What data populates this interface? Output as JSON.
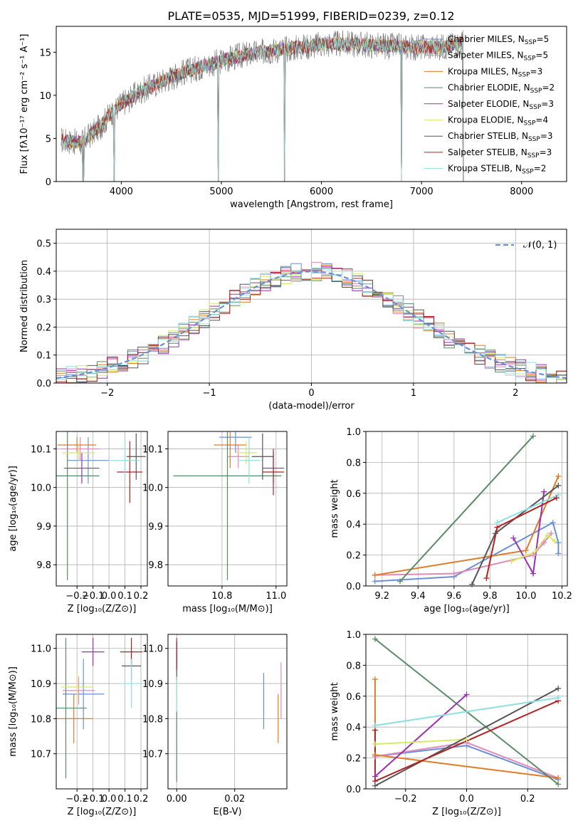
{
  "figure_title": "PLATE=0535, MJD=51999, FIBERID=0239, z=0.12",
  "colors": {
    "Chabrier MILES": "#6a8fd8",
    "Salpeter MILES": "#e08ab8",
    "Kroupa MILES": "#e07b27",
    "Chabrier ELODIE": "#5a8a66",
    "Salpeter ELODIE": "#9a30b0",
    "Kroupa ELODIE": "#d8e86a",
    "Chabrier STELIB": "#555555",
    "Salpeter STELIB": "#b22222",
    "Kroupa STELIB": "#8ae0e0",
    "spectrum": "#808080"
  },
  "chart_data": [
    {
      "id": "spectrum",
      "type": "line",
      "title": "PLATE=0535, MJD=51999, FIBERID=0239, z=0.12",
      "xlabel": "wavelength [Angstrom, rest frame]",
      "ylabel": "Flux [fλ10⁻¹⁷ erg cm⁻² s⁻¹ A⁻¹]",
      "xlim": [
        3350,
        8450
      ],
      "ylim": [
        0,
        18
      ],
      "xticks": [
        4000,
        5000,
        6000,
        7000,
        8000
      ],
      "yticks": [
        0,
        5,
        10,
        15
      ],
      "grid": false,
      "legend_position": "right",
      "legend": [
        "Chabrier MILES, N_SSP=5",
        "Salpeter MILES, N_SSP=5",
        "Kroupa MILES, N_SSP=3",
        "Chabrier ELODIE, N_SSP=2",
        "Salpeter ELODIE, N_SSP=3",
        "Kroupa ELODIE, N_SSP=4",
        "Chabrier STELIB, N_SSP=3",
        "Salpeter STELIB, N_SSP=3",
        "Kroupa STELIB, N_SSP=2"
      ],
      "continuum": {
        "x": [
          3400,
          3600,
          3800,
          3900,
          4000,
          4200,
          4400,
          4600,
          4800,
          5000,
          5200,
          5500,
          5800,
          6000,
          6300,
          6600,
          6900,
          7200,
          7400
        ],
        "y": [
          4.8,
          4.5,
          6.5,
          8.0,
          9.0,
          10.5,
          11.6,
          12.6,
          13.3,
          14.0,
          14.6,
          15.2,
          15.6,
          15.9,
          16.0,
          15.7,
          15.6,
          15.6,
          16.1
        ]
      },
      "x_range_data": [
        3400,
        7420
      ],
      "dips": [
        [
          3620,
          0.0
        ],
        [
          3930,
          0.0
        ],
        [
          4970,
          0.0
        ],
        [
          5630,
          0.0
        ],
        [
          6800,
          0.0
        ],
        [
          7420,
          0.0
        ]
      ]
    },
    {
      "id": "residuals",
      "type": "line",
      "xlabel": "(data-model)/error",
      "ylabel": "Normed distribution",
      "xlim": [
        -2.5,
        2.5
      ],
      "ylim": [
        0,
        0.55
      ],
      "xticks": [
        -2,
        -1,
        0,
        1,
        2
      ],
      "yticks": [
        0.0,
        0.1,
        0.2,
        0.3,
        0.4,
        0.5
      ],
      "grid": true,
      "legend_position": "top-right",
      "legend": [
        "𝒩(0, 1)"
      ],
      "bin_width": 0.1,
      "reference_curve": "N(0,1)"
    },
    {
      "id": "age_vs_Z",
      "type": "scatter",
      "xlabel": "Z [log₁₀(Z/Z⊙)]",
      "ylabel": "age  [log₁₀(age/yr)]",
      "xlim": [
        -0.33,
        0.24
      ],
      "ylim": [
        9.745,
        10.145
      ],
      "xticks": [
        -0.2,
        -0.1,
        0.0,
        0.1,
        0.2
      ],
      "yticks": [
        9.8,
        9.9,
        10.0,
        10.1
      ],
      "grid": true,
      "points": [
        {
          "series": "Chabrier MILES",
          "x": -0.13,
          "xerr": 0.13,
          "y": 10.07,
          "yerr": 0.06
        },
        {
          "series": "Salpeter MILES",
          "x": -0.18,
          "xerr": 0.12,
          "y": 10.1,
          "yerr": 0.03
        },
        {
          "series": "Kroupa MILES",
          "x": -0.2,
          "xerr": 0.12,
          "y": 10.11,
          "yerr": 0.02
        },
        {
          "series": "Chabrier ELODIE",
          "x": -0.26,
          "xerr": 0.2,
          "y": 10.03,
          "yerr": 0.27
        },
        {
          "series": "Salpeter ELODIE",
          "x": -0.17,
          "xerr": 0.11,
          "y": 10.05,
          "yerr": 0.04
        },
        {
          "series": "Kroupa ELODIE",
          "x": -0.19,
          "xerr": 0.1,
          "y": 10.09,
          "yerr": 0.02
        },
        {
          "series": "Chabrier STELIB",
          "x": 0.17,
          "xerr": 0.06,
          "y": 10.08,
          "yerr": 0.06
        },
        {
          "series": "Salpeter STELIB",
          "x": 0.13,
          "xerr": 0.08,
          "y": 10.04,
          "yerr": 0.08
        },
        {
          "series": "Kroupa STELIB",
          "x": 0.1,
          "xerr": 0.09,
          "y": 10.07,
          "yerr": 0.05
        }
      ]
    },
    {
      "id": "age_vs_mass",
      "type": "scatter",
      "xlabel": "mass [log₁₀(M/M⊙)]",
      "ylabel": "",
      "xlim": [
        10.6,
        11.04
      ],
      "ylim": [
        9.745,
        10.145
      ],
      "xticks": [
        10.8,
        11.0
      ],
      "yticks": [
        9.8,
        9.9,
        10.0,
        10.1
      ],
      "grid": true,
      "points": [
        {
          "series": "Chabrier MILES",
          "x": 10.85,
          "xerr": 0.06,
          "y": 10.13,
          "yerr": 0.04
        },
        {
          "series": "Salpeter MILES",
          "x": 10.86,
          "xerr": 0.04,
          "y": 10.08,
          "yerr": 0.03
        },
        {
          "series": "Kroupa MILES",
          "x": 10.83,
          "xerr": 0.06,
          "y": 10.11,
          "yerr": 0.06
        },
        {
          "series": "Chabrier ELODIE",
          "x": 10.82,
          "xerr": 0.2,
          "y": 10.03,
          "yerr": 0.27
        },
        {
          "series": "Salpeter ELODIE",
          "x": 10.99,
          "xerr": 0.04,
          "y": 10.05,
          "yerr": 0.04
        },
        {
          "series": "Kroupa ELODIE",
          "x": 10.89,
          "xerr": 0.04,
          "y": 10.09,
          "yerr": 0.03
        },
        {
          "series": "Chabrier STELIB",
          "x": 10.95,
          "xerr": 0.04,
          "y": 10.08,
          "yerr": 0.06
        },
        {
          "series": "Salpeter STELIB",
          "x": 10.99,
          "xerr": 0.04,
          "y": 10.04,
          "yerr": 0.06
        },
        {
          "series": "Kroupa STELIB",
          "x": 10.9,
          "xerr": 0.04,
          "y": 10.07,
          "yerr": 0.06
        }
      ]
    },
    {
      "id": "weight_vs_age",
      "type": "line",
      "xlabel": "age  [log₁₀(age/yr)]",
      "ylabel": "mass weight",
      "xlim": [
        9.11,
        10.23
      ],
      "ylim": [
        0.0,
        1.0
      ],
      "xticks": [
        9.2,
        9.4,
        9.6,
        9.8,
        10.0,
        10.2
      ],
      "yticks": [
        0.0,
        0.2,
        0.4,
        0.6,
        0.8,
        1.0
      ],
      "grid": true,
      "series": [
        {
          "color_key": "Chabrier MILES",
          "x": [
            9.16,
            9.6,
            10.15,
            10.18,
            10.18
          ],
          "y": [
            0.03,
            0.06,
            0.41,
            0.28,
            0.21
          ]
        },
        {
          "color_key": "Salpeter MILES",
          "x": [
            9.16,
            9.6,
            10.04,
            10.1,
            10.14
          ],
          "y": [
            0.07,
            0.08,
            0.2,
            0.28,
            0.34
          ]
        },
        {
          "color_key": "Kroupa MILES",
          "x": [
            9.16,
            10.0,
            10.18
          ],
          "y": [
            0.07,
            0.23,
            0.71
          ]
        },
        {
          "color_key": "Chabrier ELODIE",
          "x": [
            9.3,
            10.04
          ],
          "y": [
            0.03,
            0.97
          ]
        },
        {
          "color_key": "Salpeter ELODIE",
          "x": [
            9.93,
            10.04,
            10.1
          ],
          "y": [
            0.31,
            0.08,
            0.61
          ]
        },
        {
          "color_key": "Kroupa ELODIE",
          "x": [
            9.92,
            10.05,
            10.12,
            10.16
          ],
          "y": [
            0.16,
            0.22,
            0.33,
            0.29
          ]
        },
        {
          "color_key": "Chabrier STELIB",
          "x": [
            9.7,
            9.83,
            10.18
          ],
          "y": [
            0.01,
            0.34,
            0.65
          ]
        },
        {
          "color_key": "Salpeter STELIB",
          "x": [
            9.78,
            9.84,
            10.17
          ],
          "y": [
            0.05,
            0.38,
            0.57
          ]
        },
        {
          "color_key": "Kroupa STELIB",
          "x": [
            9.84,
            10.18
          ],
          "y": [
            0.41,
            0.59
          ]
        }
      ]
    },
    {
      "id": "mass_vs_Z",
      "type": "scatter",
      "xlabel": "Z [log₁₀(Z/Z⊙)]",
      "ylabel": "mass [log₁₀(M/M⊙)]",
      "xlim": [
        -0.33,
        0.24
      ],
      "ylim": [
        10.6,
        11.04
      ],
      "xticks": [
        -0.2,
        -0.1,
        0.0,
        0.1,
        0.2
      ],
      "yticks": [
        10.7,
        10.8,
        10.9,
        11.0
      ],
      "grid": true,
      "points": [
        {
          "series": "Chabrier MILES",
          "x": -0.16,
          "xerr": 0.13,
          "y": 10.87,
          "yerr": 0.1
        },
        {
          "series": "Salpeter MILES",
          "x": -0.19,
          "xerr": 0.1,
          "y": 10.88,
          "yerr": 0.04
        },
        {
          "series": "Kroupa MILES",
          "x": -0.22,
          "xerr": 0.12,
          "y": 10.8,
          "yerr": 0.07
        },
        {
          "series": "Chabrier ELODIE",
          "x": -0.27,
          "xerr": 0.13,
          "y": 10.83,
          "yerr": 0.2
        },
        {
          "series": "Salpeter ELODIE",
          "x": -0.1,
          "xerr": 0.07,
          "y": 10.99,
          "yerr": 0.04
        },
        {
          "series": "Kroupa ELODIE",
          "x": -0.2,
          "xerr": 0.1,
          "y": 10.89,
          "yerr": 0.04
        },
        {
          "series": "Chabrier STELIB",
          "x": 0.14,
          "xerr": 0.06,
          "y": 10.95,
          "yerr": 0.04
        },
        {
          "series": "Salpeter STELIB",
          "x": 0.14,
          "xerr": 0.07,
          "y": 10.99,
          "yerr": 0.04
        },
        {
          "series": "Kroupa STELIB",
          "x": 0.14,
          "xerr": 0.07,
          "y": 10.9,
          "yerr": 0.07
        }
      ]
    },
    {
      "id": "mass_vs_ebv",
      "type": "scatter",
      "xlabel": "E(B-V)",
      "ylabel": "",
      "xlim": [
        -0.003,
        0.038
      ],
      "ylim": [
        10.6,
        11.04
      ],
      "xticks": [
        0.0,
        0.02
      ],
      "yticks": [
        10.7,
        10.8,
        10.9,
        11.0
      ],
      "grid": true,
      "points": [
        {
          "series": "Chabrier MILES",
          "x": 0.03,
          "xerr": 0.0,
          "y": 10.85,
          "yerr": 0.08
        },
        {
          "series": "Salpeter MILES",
          "x": 0.036,
          "xerr": 0.0,
          "y": 10.88,
          "yerr": 0.08
        },
        {
          "series": "Kroupa MILES",
          "x": 0.035,
          "xerr": 0.0,
          "y": 10.8,
          "yerr": 0.07
        },
        {
          "series": "Chabrier ELODIE",
          "x": 0.0,
          "xerr": 0.0,
          "y": 10.72,
          "yerr": 0.1
        },
        {
          "series": "Salpeter ELODIE",
          "x": 0.0,
          "xerr": 0.0,
          "y": 10.99,
          "yerr": 0.04
        },
        {
          "series": "Kroupa ELODIE",
          "x": 0.0,
          "xerr": 0.0,
          "y": 10.89,
          "yerr": 0.03
        },
        {
          "series": "Chabrier STELIB",
          "x": 0.0,
          "xerr": 0.0,
          "y": 10.95,
          "yerr": 0.04
        },
        {
          "series": "Salpeter STELIB",
          "x": 0.0,
          "xerr": 0.0,
          "y": 10.98,
          "yerr": 0.04
        },
        {
          "series": "Kroupa STELIB",
          "x": 0.0,
          "xerr": 0.0,
          "y": 10.87,
          "yerr": 0.05
        }
      ]
    },
    {
      "id": "weight_vs_Z",
      "type": "line",
      "xlabel": "Z [log₁₀(Z/Z⊙)]",
      "ylabel": "mass weight",
      "xlim": [
        -0.33,
        0.33
      ],
      "ylim": [
        0.0,
        1.0
      ],
      "xticks": [
        -0.2,
        0.0,
        0.2
      ],
      "yticks": [
        0.0,
        0.2,
        0.4,
        0.6,
        0.8,
        1.0
      ],
      "grid": true,
      "series": [
        {
          "color_key": "Chabrier MILES",
          "x": [
            -0.3,
            0.0,
            0.3
          ],
          "y": [
            0.21,
            0.28,
            0.06
          ]
        },
        {
          "color_key": "Salpeter MILES",
          "x": [
            -0.3,
            0.0,
            0.3
          ],
          "y": [
            0.21,
            0.3,
            0.07
          ]
        },
        {
          "color_key": "Kroupa MILES",
          "x": [
            -0.3,
            -0.3,
            0.3
          ],
          "y": [
            0.71,
            0.22,
            0.07
          ]
        },
        {
          "color_key": "Chabrier ELODIE",
          "x": [
            -0.3,
            0.3
          ],
          "y": [
            0.97,
            0.03
          ]
        },
        {
          "color_key": "Salpeter ELODIE",
          "x": [
            -0.3,
            0.0
          ],
          "y": [
            0.08,
            0.61
          ]
        },
        {
          "color_key": "Kroupa ELODIE",
          "x": [
            -0.3,
            0.0
          ],
          "y": [
            0.29,
            0.32
          ]
        },
        {
          "color_key": "Chabrier STELIB",
          "x": [
            -0.3,
            0.3
          ],
          "y": [
            0.02,
            0.65
          ]
        },
        {
          "color_key": "Salpeter STELIB",
          "x": [
            -0.3,
            -0.3,
            0.3
          ],
          "y": [
            0.38,
            0.05,
            0.57
          ]
        },
        {
          "color_key": "Kroupa STELIB",
          "x": [
            -0.3,
            0.3
          ],
          "y": [
            0.41,
            0.59
          ]
        }
      ]
    }
  ]
}
